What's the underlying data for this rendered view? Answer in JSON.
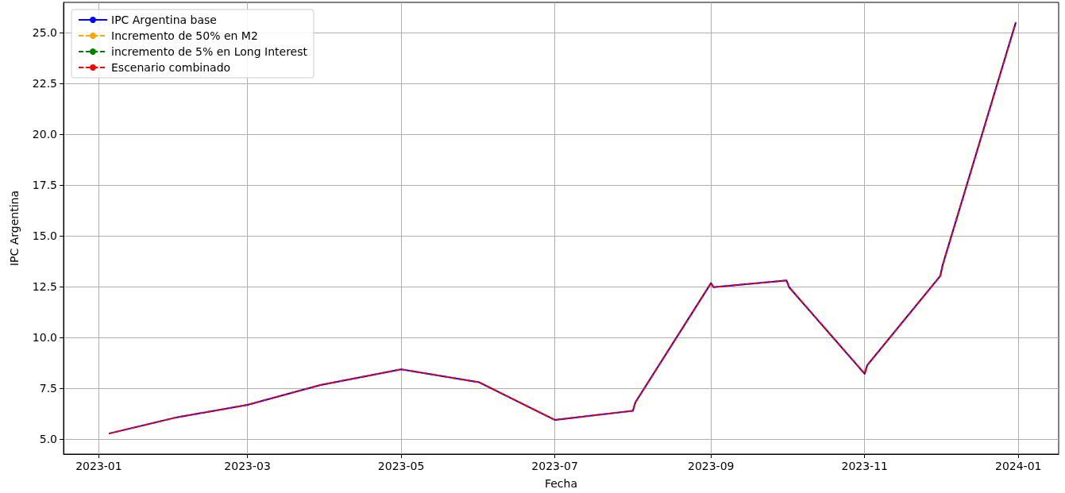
{
  "chart_data": {
    "type": "line",
    "xlabel": "Fecha",
    "ylabel": "IPC Argentina",
    "x": [
      "2023-01-05",
      "2023-02-01",
      "2023-03-01",
      "2023-03-30",
      "2023-05-01",
      "2023-06-01",
      "2023-07-01",
      "2023-08-01",
      "2023-08-02",
      "2023-09-01",
      "2023-09-02",
      "2023-10-01",
      "2023-10-02",
      "2023-11-01",
      "2023-11-02",
      "2023-12-01",
      "2023-12-02",
      "2023-12-31"
    ],
    "series": [
      {
        "name": "IPC Argentina base",
        "color": "#0000ff",
        "line_style": "solid",
        "values": [
          5.27,
          6.07,
          6.68,
          7.66,
          8.43,
          7.79,
          5.94,
          6.39,
          6.81,
          12.67,
          12.47,
          12.8,
          12.47,
          8.21,
          8.63,
          13.02,
          13.58,
          25.5
        ]
      },
      {
        "name": "Incremento de 50% en M2",
        "color": "#ffa500",
        "line_style": "dashed",
        "values": [
          null,
          null,
          null,
          null,
          null,
          null,
          null,
          null,
          null,
          null,
          null,
          null,
          null,
          null,
          null,
          null,
          null,
          null
        ]
      },
      {
        "name": "incremento de 5% en Long Interest",
        "color": "#008000",
        "line_style": "dashed",
        "values": [
          null,
          null,
          null,
          null,
          null,
          null,
          null,
          null,
          null,
          null,
          null,
          null,
          null,
          null,
          null,
          null,
          null,
          null
        ]
      },
      {
        "name": "Escenario combinado",
        "color": "#ff0000",
        "line_style": "dashed",
        "values": [
          5.27,
          6.07,
          6.68,
          7.66,
          8.43,
          7.79,
          5.94,
          6.39,
          6.81,
          12.67,
          12.47,
          12.8,
          12.47,
          8.21,
          8.63,
          13.02,
          13.58,
          25.5
        ]
      }
    ],
    "xlim": [
      "2022-12-18",
      "2024-01-17"
    ],
    "xticks": [
      "2023-01",
      "2023-03",
      "2023-05",
      "2023-07",
      "2023-09",
      "2023-11",
      "2024-01"
    ],
    "ylim": [
      4.26,
      26.48
    ],
    "yticks": [
      {
        "value": 5,
        "label": "5.0"
      },
      {
        "value": 7.5,
        "label": "7.5"
      },
      {
        "value": 10,
        "label": "10.0"
      },
      {
        "value": 12.5,
        "label": "12.5"
      },
      {
        "value": 15,
        "label": "15.0"
      },
      {
        "value": 17.5,
        "label": "17.5"
      },
      {
        "value": 20,
        "label": "20.0"
      },
      {
        "value": 22.5,
        "label": "22.5"
      },
      {
        "value": 25,
        "label": "25.0"
      }
    ],
    "grid": true,
    "legend": "top left",
    "marker": "none"
  }
}
